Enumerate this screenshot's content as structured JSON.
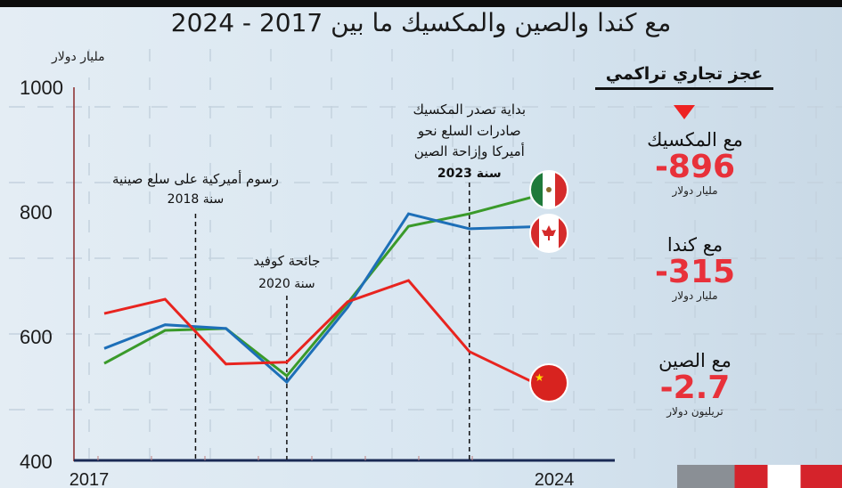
{
  "title": "مع كندا والصين والمكسيك ما بين 2017 - 2024",
  "chart_data": {
    "type": "line",
    "ylabel": "مليار دولار",
    "ylim": [
      400,
      1000
    ],
    "yticks": [
      "400",
      "600",
      "800",
      "1000"
    ],
    "x": [
      2017,
      2018,
      2019,
      2020,
      2021,
      2022,
      2023,
      2024
    ],
    "xtick_labels": [
      "2017",
      "2024"
    ],
    "grid": true,
    "series": [
      {
        "country": "mexico",
        "color": "#3a9a2a",
        "values": [
          557,
          610,
          613,
          537,
          654,
          777,
          797,
          823
        ]
      },
      {
        "country": "canada",
        "color": "#1d6fb8",
        "values": [
          581,
          619,
          613,
          527,
          647,
          797,
          773,
          776
        ]
      },
      {
        "country": "china",
        "color": "#e8241f",
        "values": [
          637,
          660,
          556,
          559,
          656,
          690,
          576,
          529
        ]
      }
    ],
    "annotations": [
      {
        "x": 2018.5,
        "lines": [
          "رسوم أميركية على سلع صينية",
          "سنة 2018"
        ]
      },
      {
        "x": 2020,
        "lines": [
          "جائحة كوفيد",
          "سنة 2020"
        ]
      },
      {
        "x": 2023,
        "lines": [
          "بداية تصدر المكسيك",
          "صادرات السلع نحو",
          "أميركا وإزاحة الصين",
          "سنة 2023"
        ]
      }
    ]
  },
  "panel": {
    "title": "عجز تجاري تراكمي",
    "items": [
      {
        "name": "مع المكسيك",
        "value": "-896",
        "unit": "مليار دولار"
      },
      {
        "name": "مع كندا",
        "value": "-315",
        "unit": "مليار دولار"
      },
      {
        "name": "مع الصين",
        "value": "-2.7",
        "unit": "تريليون دولار"
      }
    ]
  }
}
